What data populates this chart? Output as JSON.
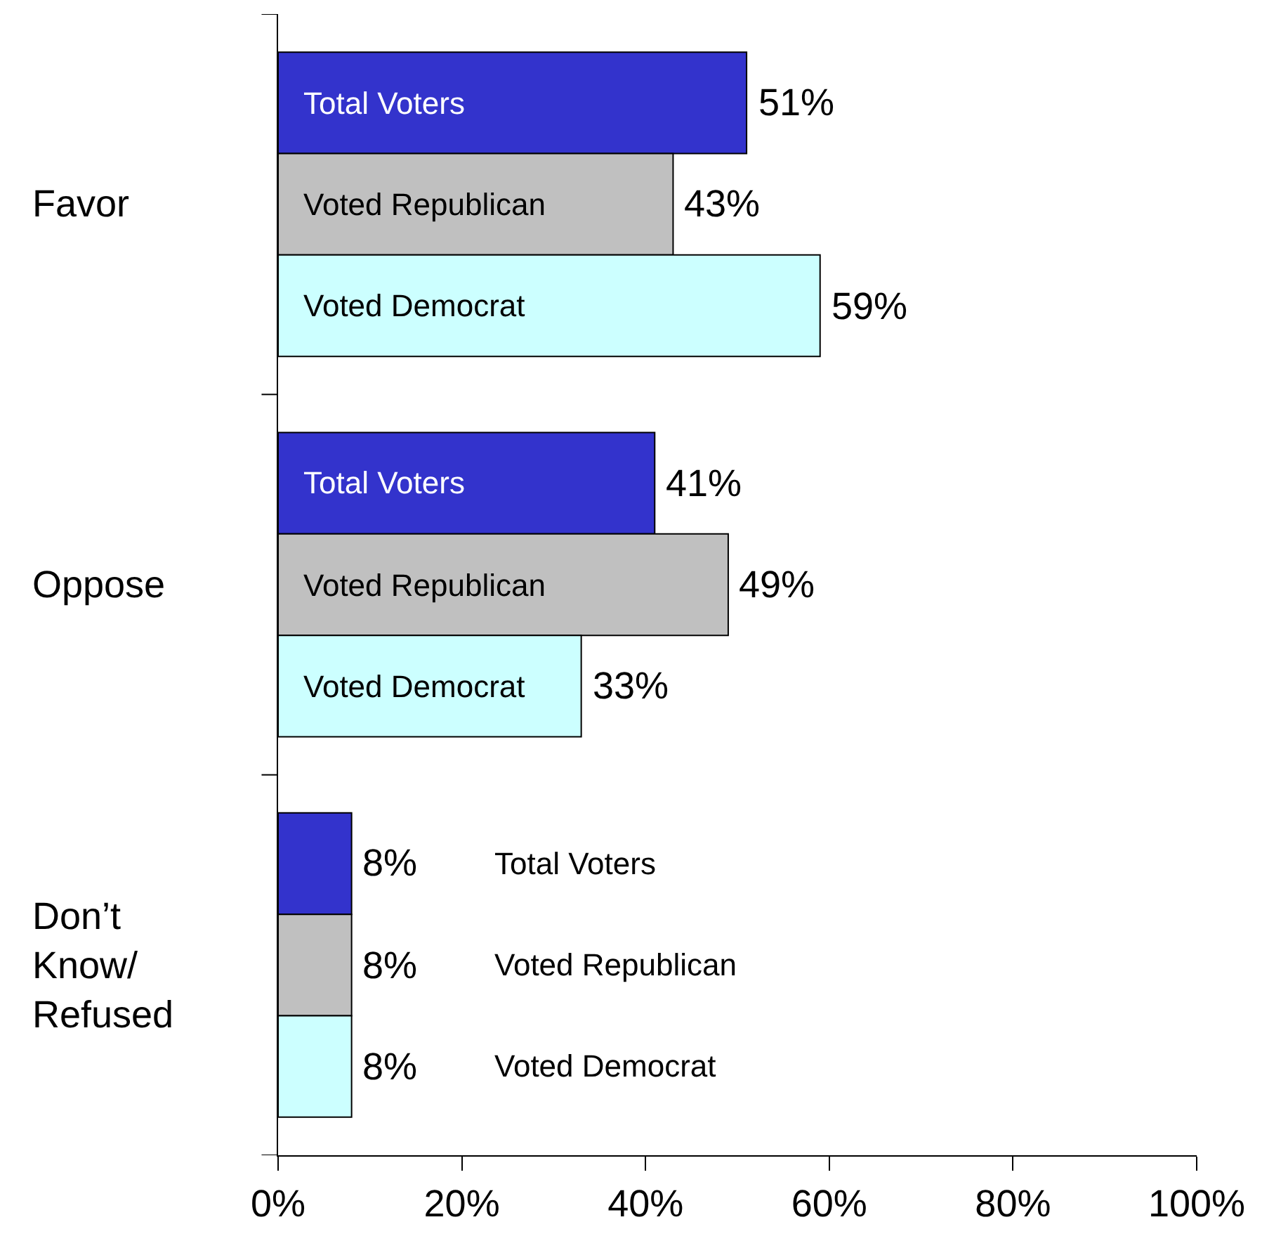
{
  "chart_data": {
    "type": "bar",
    "orientation": "horizontal",
    "categories": [
      "Favor",
      "Oppose",
      "Don’t Know/ Refused"
    ],
    "series": [
      {
        "name": "Total Voters",
        "color": "#3333cc",
        "values": [
          51,
          41,
          8
        ],
        "value_labels": [
          "51%",
          "41%",
          "8%"
        ]
      },
      {
        "name": "Voted Republican",
        "color": "#c0c0c0",
        "values": [
          43,
          49,
          8
        ],
        "value_labels": [
          "43%",
          "49%",
          "8%"
        ]
      },
      {
        "name": "Voted Democrat",
        "color": "#ccffff",
        "values": [
          59,
          33,
          8
        ],
        "value_labels": [
          "59%",
          "33%",
          "8%"
        ]
      }
    ],
    "xlim": [
      0,
      100
    ],
    "xticks": [
      {
        "value": 0,
        "label": "0%"
      },
      {
        "value": 20,
        "label": "20%"
      },
      {
        "value": 40,
        "label": "40%"
      },
      {
        "value": 60,
        "label": "60%"
      },
      {
        "value": 80,
        "label": "80%"
      },
      {
        "value": 100,
        "label": "100%"
      }
    ],
    "grid": false,
    "legend": false
  }
}
